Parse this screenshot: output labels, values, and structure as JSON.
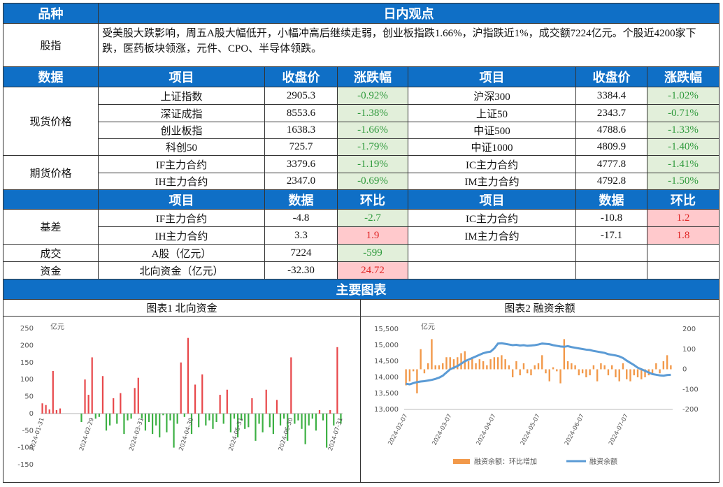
{
  "table": {
    "header": [
      "品种",
      "日内观点"
    ],
    "stock_index": [
      "股指",
      "受美股大跌影响，周五A股大幅低开，小幅冲高后继续走弱，创业板指跌1.66%，沪指跌近1%，成交额7224亿元。个股近4200家下跌，医药板块领涨，元件、CPO、半导体领跌。"
    ],
    "spot_header": [
      "数据",
      "项目",
      "收盘价",
      "涨跌幅",
      "项目",
      "收盘价",
      "涨跌幅"
    ],
    "spot_groups": [
      {
        "label": "现货价格",
        "rows": [
          [
            "上证指数",
            "2905.3",
            "-0.92%",
            "沪深300",
            "3384.4",
            "-1.02%"
          ],
          [
            "深证成指",
            "8553.6",
            "-1.38%",
            "上证50",
            "2343.7",
            "-0.71%"
          ],
          [
            "创业板指",
            "1638.3",
            "-1.66%",
            "中证500",
            "4788.6",
            "-1.33%"
          ],
          [
            "科创50",
            "725.7",
            "-1.79%",
            "中证1000",
            "4809.9",
            "-1.40%"
          ]
        ]
      },
      {
        "label": "期货价格",
        "rows": [
          [
            "IF主力合约",
            "3379.6",
            "-1.19%",
            "IC主力合约",
            "4777.8",
            "-1.41%"
          ],
          [
            "IH主力合约",
            "2347.0",
            "-0.69%",
            "IM主力合约",
            "4792.8",
            "-1.50%"
          ]
        ]
      }
    ],
    "basis_header": [
      "项目",
      "数据",
      "环比",
      "项目",
      "数据",
      "环比"
    ],
    "basis_groups": [
      {
        "label": "基差",
        "rows": [
          [
            "IF主力合约",
            "-4.8",
            "-2.7",
            "IC主力合约",
            "-10.8",
            "1.2"
          ],
          [
            "IH主力合约",
            "3.3",
            "1.9",
            "IM主力合约",
            "-17.1",
            "1.8"
          ]
        ]
      },
      {
        "label": "成交",
        "rows": [
          [
            "A股（亿元）",
            "7224",
            "-599"
          ]
        ]
      },
      {
        "label": "资金",
        "rows": [
          [
            "北向资金（亿元）",
            "-32.30",
            "24.72"
          ]
        ]
      }
    ]
  },
  "charts_title": "主要图表",
  "chart_data": [
    {
      "type": "bar",
      "title": "图表1  北向资金",
      "y_label": "亿元",
      "positive_color": "#e8474a",
      "negative_color": "#3cb043",
      "ylim": [
        -150,
        250
      ],
      "yticks": [
        -150,
        -100,
        -50,
        0,
        50,
        100,
        150,
        200,
        250
      ],
      "categories": [
        "2024-01-31",
        null,
        null,
        null,
        null,
        null,
        null,
        null,
        null,
        null,
        null,
        null,
        null,
        null,
        "2024-02-29",
        null,
        null,
        null,
        null,
        null,
        null,
        null,
        null,
        null,
        null,
        null,
        null,
        null,
        "2024-03-31",
        null,
        null,
        null,
        null,
        null,
        null,
        null,
        null,
        null,
        null,
        null,
        null,
        null,
        "2024-04-30",
        null,
        null,
        null,
        null,
        null,
        null,
        null,
        null,
        null,
        null,
        null,
        null,
        null,
        "2024-05-31",
        null,
        null,
        null,
        null,
        null,
        null,
        null,
        null,
        null,
        null,
        null,
        null,
        null,
        "2024-06-30",
        null,
        null,
        null,
        null,
        null,
        null,
        null,
        null,
        null,
        null,
        null,
        null,
        null,
        "2024-07-31"
      ],
      "values": [
        30,
        25,
        12,
        125,
        10,
        15,
        0,
        0,
        0,
        0,
        0,
        -25,
        100,
        55,
        165,
        -15,
        -10,
        110,
        -50,
        -35,
        45,
        -30,
        60,
        -60,
        -20,
        -15,
        75,
        105,
        -15,
        -50,
        -25,
        -60,
        -35,
        -70,
        -5,
        -55,
        -20,
        -100,
        -30,
        150,
        -10,
        222,
        -60,
        85,
        -40,
        115,
        -35,
        -20,
        -45,
        -25,
        55,
        -30,
        70,
        -55,
        -15,
        -70,
        -20,
        -45,
        -40,
        45,
        -80,
        -30,
        -55,
        70,
        -40,
        -60,
        40,
        -35,
        -15,
        -80,
        165,
        -30,
        -20,
        -45,
        -90,
        -35,
        -15,
        -50,
        10,
        -20,
        -100,
        10,
        -35,
        195,
        -30
      ]
    },
    {
      "type": "combo",
      "title": "图表2  融资余额",
      "y_label": "亿元",
      "ylim": [
        13000,
        15500
      ],
      "yticks": [
        {
          "value": 13000,
          "label": "13,000"
        },
        {
          "value": 13500,
          "label": "13,500"
        },
        {
          "value": 14000,
          "label": "14,000"
        },
        {
          "value": 14500,
          "label": "14,500"
        },
        {
          "value": 15000,
          "label": "15,000"
        },
        {
          "value": 15500,
          "label": "15,500"
        }
      ],
      "y2lim": [
        -200,
        200
      ],
      "y2ticks": [
        -200,
        -100,
        0,
        100,
        200
      ],
      "categories": [
        "2024-02-07",
        null,
        null,
        null,
        null,
        null,
        null,
        null,
        null,
        null,
        null,
        null,
        "2024-03-07",
        null,
        null,
        null,
        null,
        null,
        null,
        null,
        null,
        null,
        null,
        null,
        "2024-04-07",
        null,
        null,
        null,
        null,
        null,
        null,
        null,
        null,
        null,
        null,
        null,
        "2024-05-07",
        null,
        null,
        null,
        null,
        null,
        null,
        null,
        null,
        null,
        null,
        null,
        "2024-06-07",
        null,
        null,
        null,
        null,
        null,
        null,
        null,
        null,
        null,
        null,
        null,
        "2024-07-07",
        null,
        null,
        null,
        null,
        null,
        null,
        null,
        null,
        null,
        null,
        null,
        null
      ],
      "series": [
        {
          "name": "融资余额：环比增加",
          "color": "#f2994a",
          "kind": "bar",
          "axis": "y2",
          "values": [
            -80,
            -60,
            -10,
            -120,
            100,
            -20,
            30,
            150,
            20,
            20,
            30,
            60,
            60,
            50,
            60,
            80,
            90,
            40,
            60,
            30,
            50,
            40,
            20,
            50,
            60,
            60,
            70,
            50,
            20,
            -40,
            40,
            -30,
            30,
            -20,
            -30,
            20,
            30,
            70,
            -20,
            -60,
            10,
            -10,
            -70,
            150,
            40,
            30,
            20,
            -30,
            -20,
            -40,
            -30,
            20,
            -60,
            30,
            20,
            -30,
            20,
            -40,
            -60,
            30,
            -50,
            -60,
            -30,
            -40,
            -50,
            -40,
            -30,
            -20,
            30,
            -20,
            40,
            70,
            20
          ]
        },
        {
          "name": "融资余额",
          "color": "#5b9bd5",
          "kind": "line",
          "values": [
            13800,
            13780,
            13820,
            13850,
            13870,
            13880,
            13900,
            13920,
            13950,
            13990,
            14050,
            14150,
            14250,
            14300,
            14350,
            14420,
            14500,
            14550,
            14600,
            14650,
            14700,
            14750,
            14780,
            14800,
            14900,
            15050,
            15060,
            15040,
            15020,
            15000,
            15010,
            14990,
            15000,
            14980,
            14990,
            15000,
            15020,
            15050,
            15040,
            15030,
            15000,
            14980,
            14960,
            14950,
            14970,
            14940,
            14920,
            14900,
            14880,
            14860,
            14850,
            14820,
            14800,
            14780,
            14760,
            14720,
            14700,
            14680,
            14650,
            14600,
            14520,
            14450,
            14380,
            14300,
            14250,
            14200,
            14150,
            14100,
            14080,
            14060,
            14050,
            14070,
            14080
          ]
        }
      ]
    }
  ]
}
